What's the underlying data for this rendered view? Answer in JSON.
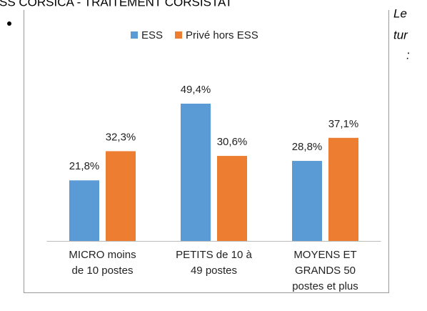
{
  "header": "SS CORSICA - TRAITEMENT CORSISTAT",
  "side_text": [
    "Le",
    "tur",
    ":"
  ],
  "chart_data": {
    "type": "bar",
    "categories": [
      [
        "MICRO moins",
        "de 10 postes"
      ],
      [
        "PETITS de 10 à",
        "49 postes"
      ],
      [
        "MOYENS ET",
        "GRANDS 50",
        "postes et plus"
      ]
    ],
    "series": [
      {
        "name": "ESS",
        "color": "#5b9bd5",
        "values": [
          21.8,
          49.4,
          28.8
        ],
        "value_labels": [
          "21,8%",
          "49,4%",
          "28,8%"
        ]
      },
      {
        "name": "Privé hors ESS",
        "color": "#ed7d31",
        "values": [
          32.3,
          30.6,
          37.1
        ],
        "value_labels": [
          "32,3%",
          "30,6%",
          "37,1%"
        ]
      }
    ],
    "legend": "top"
  }
}
